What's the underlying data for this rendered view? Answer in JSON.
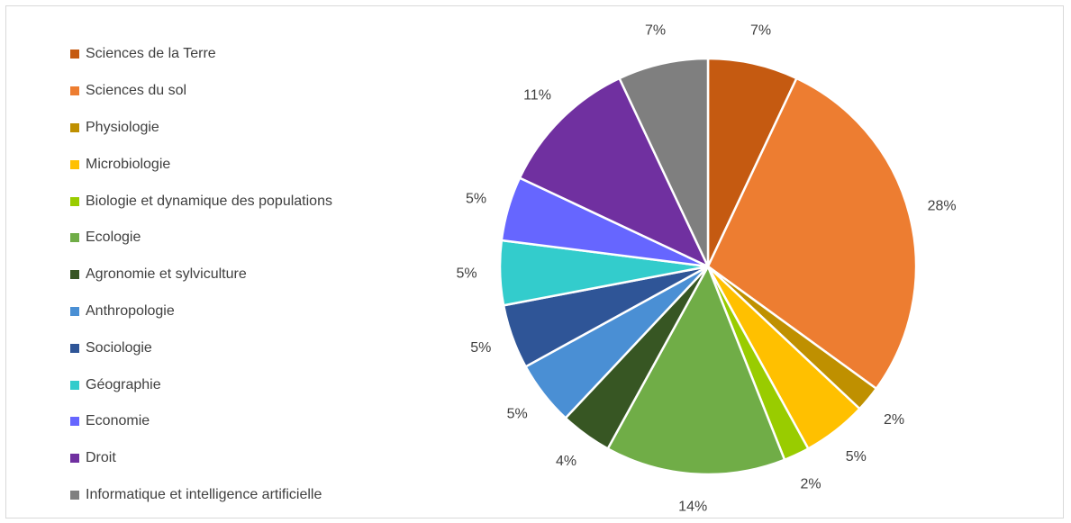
{
  "chart_data": {
    "type": "pie",
    "title": "",
    "legend_position": "left",
    "slices": [
      {
        "label": "Sciences de la Terre",
        "value": 7,
        "value_label": "7%",
        "color": "#c55a11"
      },
      {
        "label": "Sciences du sol",
        "value": 28,
        "value_label": "28%",
        "color": "#ed7d31"
      },
      {
        "label": "Physiologie",
        "value": 2,
        "value_label": "2%",
        "color": "#bf9000"
      },
      {
        "label": "Microbiologie",
        "value": 5,
        "value_label": "5%",
        "color": "#ffc000"
      },
      {
        "label": "Biologie et dynamique des populations",
        "value": 2,
        "value_label": "2%",
        "color": "#99cc00"
      },
      {
        "label": "Ecologie",
        "value": 14,
        "value_label": "14%",
        "color": "#70ad47"
      },
      {
        "label": "Agronomie et sylviculture",
        "value": 4,
        "value_label": "4%",
        "color": "#375623"
      },
      {
        "label": "Anthropologie",
        "value": 5,
        "value_label": "5%",
        "color": "#4a8fd4"
      },
      {
        "label": "Sociologie",
        "value": 5,
        "value_label": "5%",
        "color": "#2f5597"
      },
      {
        "label": "Géographie",
        "value": 5,
        "value_label": "5%",
        "color": "#33cccc"
      },
      {
        "label": "Economie",
        "value": 5,
        "value_label": "5%",
        "color": "#6666ff"
      },
      {
        "label": "Droit",
        "value": 11,
        "value_label": "11%",
        "color": "#7030a0"
      },
      {
        "label": "Informatique et intelligence artificielle",
        "value": 7,
        "value_label": "7%",
        "color": "#7f7f7f"
      }
    ]
  }
}
